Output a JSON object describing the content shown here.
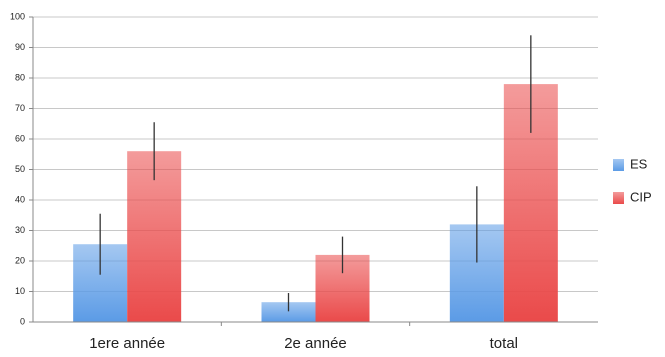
{
  "chart_data": {
    "type": "bar",
    "categories": [
      "1ere année",
      "2e année",
      "total"
    ],
    "series": [
      {
        "name": "ES",
        "color": "#5b9be6",
        "values": [
          25.5,
          6.5,
          32
        ],
        "errors": [
          10,
          3,
          12.5
        ]
      },
      {
        "name": "CIP",
        "color": "#ea4a4a",
        "values": [
          56,
          22,
          78
        ],
        "errors": [
          9.5,
          6,
          16
        ]
      }
    ],
    "ylim": [
      0,
      100
    ],
    "yticks": [
      0,
      10,
      20,
      30,
      40,
      50,
      60,
      70,
      80,
      90,
      100
    ],
    "grid": true,
    "legend": "right"
  }
}
